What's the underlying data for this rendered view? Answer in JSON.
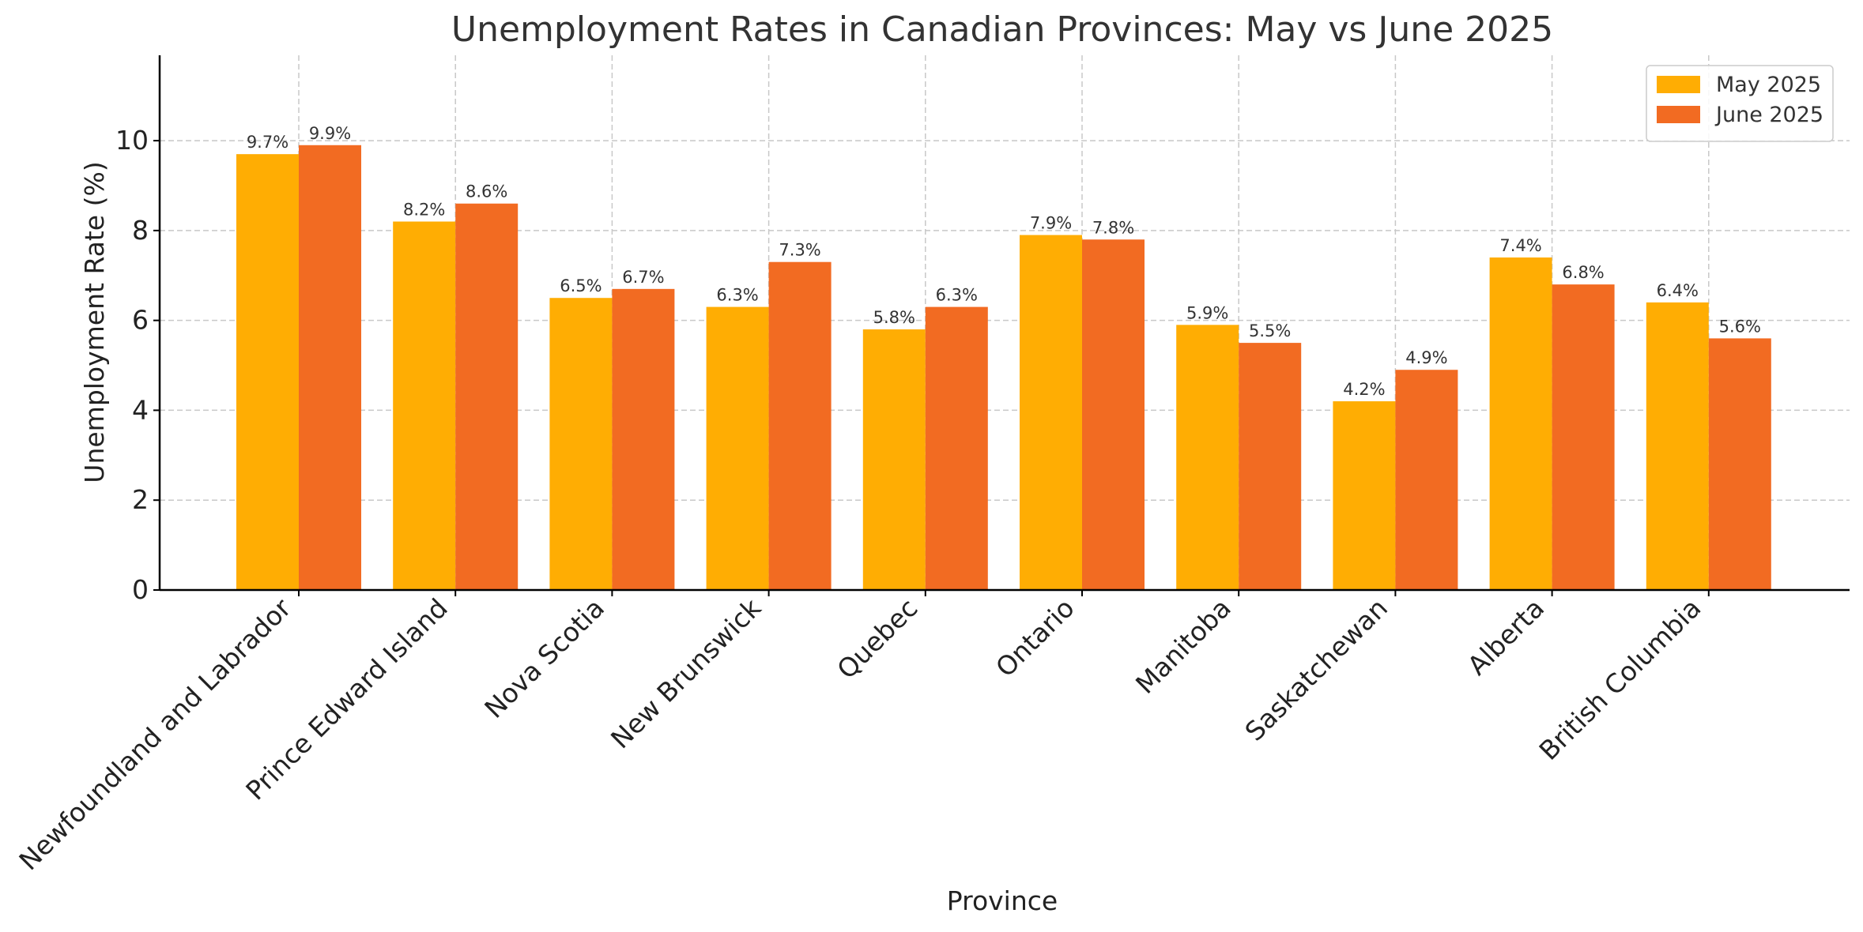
{
  "chart_data": {
    "type": "bar",
    "title": "Unemployment Rates in Canadian Provinces: May vs June 2025",
    "xlabel": "Province",
    "ylabel": "Unemployment Rate (%)",
    "ylim": [
      0,
      11.9
    ],
    "yticks": [
      0,
      2,
      4,
      6,
      8,
      10
    ],
    "grid": true,
    "legend_position": "top-right",
    "categories": [
      "Newfoundland and Labrador",
      "Prince Edward Island",
      "Nova Scotia",
      "New Brunswick",
      "Quebec",
      "Ontario",
      "Manitoba",
      "Saskatchewan",
      "Alberta",
      "British Columbia"
    ],
    "series": [
      {
        "name": "May 2025",
        "color": "#FFAD03",
        "values": [
          9.7,
          8.2,
          6.5,
          6.3,
          5.8,
          7.9,
          5.9,
          4.2,
          7.4,
          6.4
        ],
        "labels": [
          "9.7%",
          "8.2%",
          "6.5%",
          "6.3%",
          "5.8%",
          "7.9%",
          "5.9%",
          "4.2%",
          "7.4%",
          "6.4%"
        ]
      },
      {
        "name": "June 2025",
        "color": "#F26B22",
        "values": [
          9.9,
          8.6,
          6.7,
          7.3,
          6.3,
          7.8,
          5.5,
          4.9,
          6.8,
          5.6
        ],
        "labels": [
          "9.9%",
          "8.6%",
          "6.7%",
          "7.3%",
          "6.3%",
          "7.8%",
          "5.5%",
          "4.9%",
          "6.8%",
          "5.6%"
        ]
      }
    ]
  }
}
